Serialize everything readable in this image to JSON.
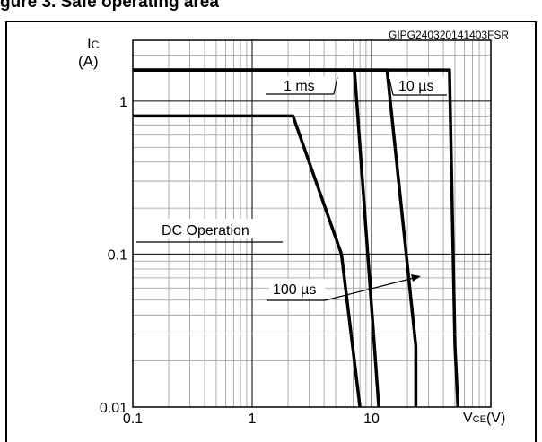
{
  "title": "gure 3. Safe operating area",
  "chart_data": {
    "type": "line",
    "figure_code": "GIPG240320141403FSR",
    "ylabel_main": "I",
    "ylabel_sub": "C",
    "ylabel_unit": "(A)",
    "xlabel_main": "V",
    "xlabel_sub": "CE",
    "xlabel_unit": "(V)",
    "x_scale": "log",
    "y_scale": "log",
    "xlim": [
      0.1,
      100
    ],
    "ylim": [
      0.01,
      2.5
    ],
    "x_ticks": [
      {
        "value": 0.1,
        "label": "0.1"
      },
      {
        "value": 1,
        "label": "1"
      },
      {
        "value": 10,
        "label": "10"
      }
    ],
    "y_ticks": [
      {
        "value": 1,
        "label": "1"
      },
      {
        "value": 0.1,
        "label": "0.1"
      },
      {
        "value": 0.01,
        "label": "0.01"
      }
    ],
    "grid": true,
    "series": [
      {
        "name": "DC Operation",
        "points": [
          [
            0.1,
            0.8
          ],
          [
            2.2,
            0.8
          ],
          [
            5.6,
            0.1
          ],
          [
            8.0,
            0.01
          ]
        ]
      },
      {
        "name": "1 ms",
        "points": [
          [
            0.1,
            1.6
          ],
          [
            7.2,
            1.6
          ],
          [
            11.5,
            0.01
          ]
        ]
      },
      {
        "name": "100 µs",
        "points": [
          [
            0.1,
            1.6
          ],
          [
            13.5,
            1.6
          ],
          [
            23.5,
            0.025
          ],
          [
            23.5,
            0.01
          ]
        ]
      },
      {
        "name": "10 µs",
        "points": [
          [
            0.1,
            1.6
          ],
          [
            45,
            1.6
          ],
          [
            50,
            0.025
          ],
          [
            53,
            0.01
          ]
        ]
      }
    ],
    "annotations": [
      {
        "text": "1 ms",
        "x": 6.0,
        "y": 1.08
      },
      {
        "text": "10 µs",
        "x": 16.5,
        "y": 1.08
      },
      {
        "text": "DC Operation",
        "x": 0.9,
        "y": 0.155
      },
      {
        "text": "100 µs",
        "x": 2.5,
        "y": 0.033
      }
    ]
  }
}
